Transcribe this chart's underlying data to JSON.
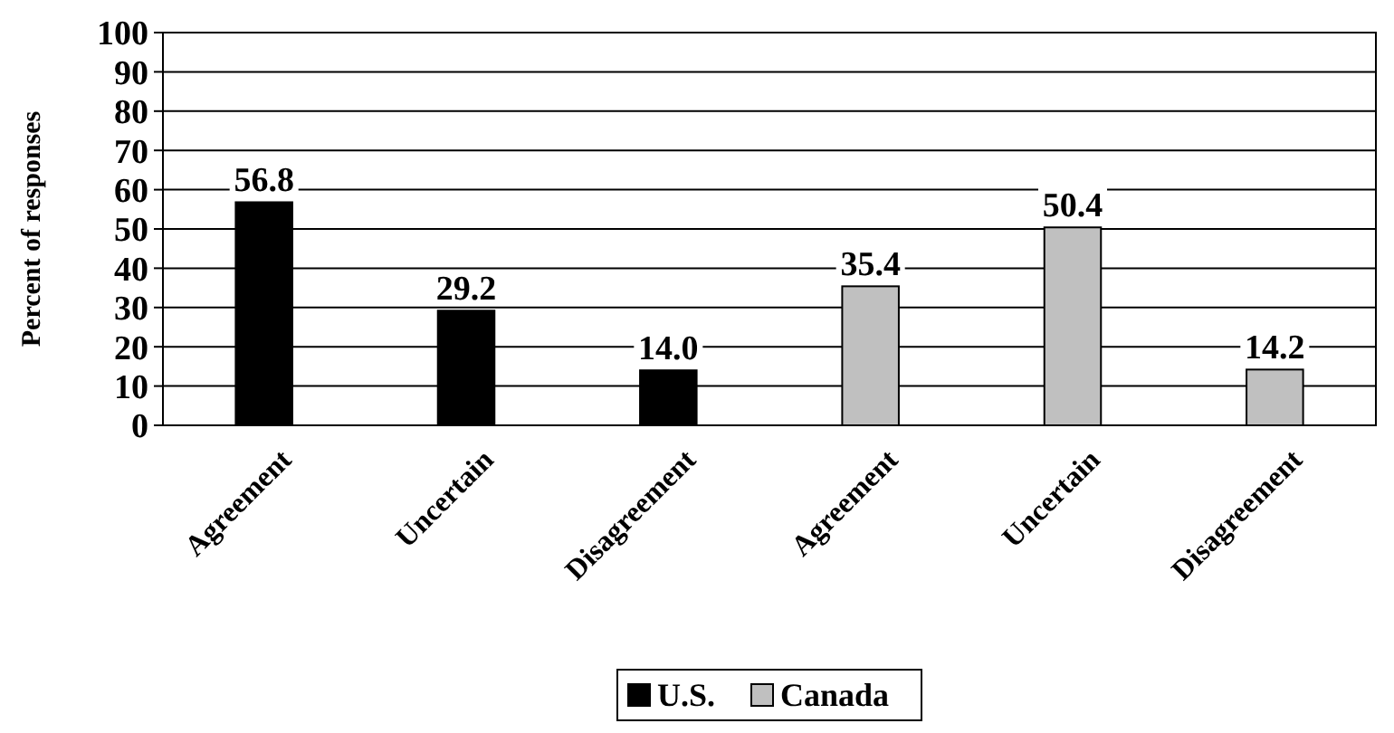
{
  "chart_data": {
    "type": "bar",
    "ylabel": "Percent of responses",
    "categories": [
      "Agreement",
      "Uncertain",
      "Disagreement",
      "Agreement",
      "Uncertain",
      "Disagreement"
    ],
    "series": [
      {
        "name": "U.S.",
        "color": "#000000",
        "values": [
          56.8,
          29.2,
          14.0,
          null,
          null,
          null
        ],
        "value_labels": [
          "56.8",
          "29.2",
          "14.0",
          null,
          null,
          null
        ]
      },
      {
        "name": "Canada",
        "color": "#c0c0c0",
        "values": [
          null,
          null,
          null,
          35.4,
          50.4,
          14.2
        ],
        "value_labels": [
          null,
          null,
          null,
          "35.4",
          "50.4",
          "14.2"
        ]
      }
    ],
    "ylim": [
      0,
      100
    ],
    "yticks": [
      0,
      10,
      20,
      30,
      40,
      50,
      60,
      70,
      80,
      90,
      100
    ],
    "grid": "y",
    "legend": "bottom"
  }
}
